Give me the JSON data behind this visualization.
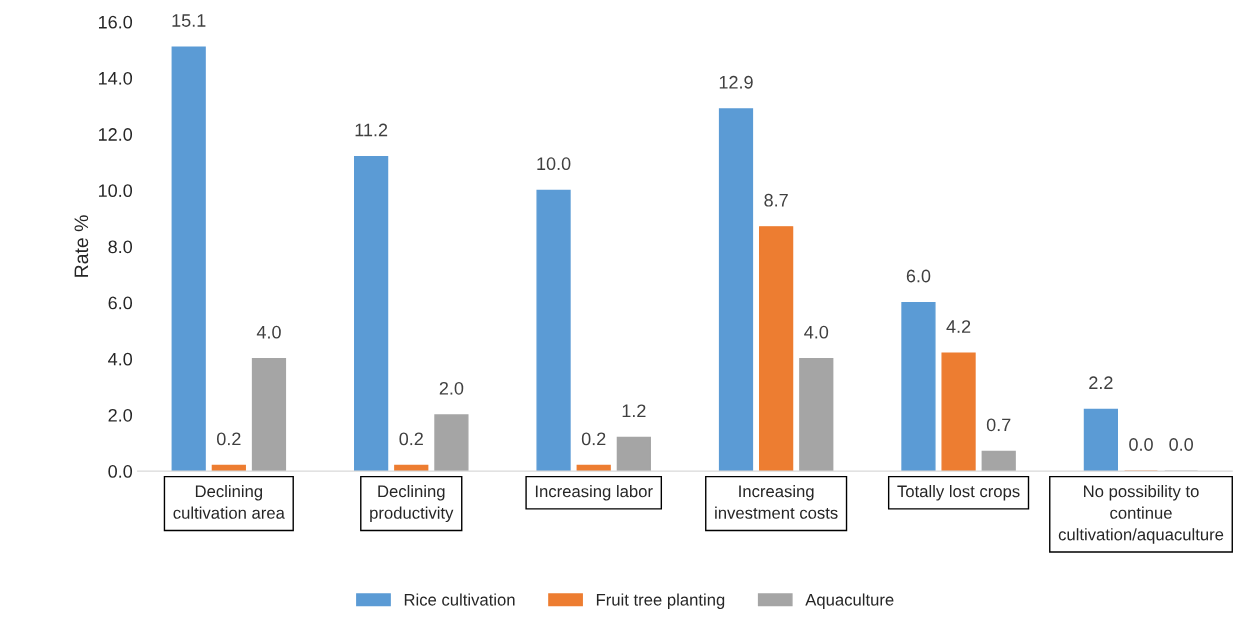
{
  "chart_data": {
    "type": "bar",
    "ylabel": "Rate %",
    "categories": [
      "Declining cultivation area",
      "Declining productivity",
      "Increasing labor",
      "Increasing investment costs",
      "Totally lost crops",
      "No possibility to continue cultivation/aquaculture"
    ],
    "series": [
      {
        "name": "Rice cultivation",
        "color": "#5b9bd5",
        "values": [
          15.1,
          11.2,
          10.0,
          12.9,
          6.0,
          2.2
        ],
        "value_labels": [
          "15.1",
          "11.2",
          "10.0",
          "12.9",
          "6.0",
          "2.2"
        ]
      },
      {
        "name": "Fruit tree planting",
        "color": "#ed7d31",
        "values": [
          0.2,
          0.2,
          0.2,
          8.7,
          4.2,
          0.0
        ],
        "value_labels": [
          "0.2",
          "0.2",
          "0.2",
          "8.7",
          "4.2",
          "0.0"
        ]
      },
      {
        "name": "Aquaculture",
        "color": "#a5a5a5",
        "values": [
          4.0,
          2.0,
          1.2,
          4.0,
          0.7,
          0.0
        ],
        "value_labels": [
          "4.0",
          "2.0",
          "1.2",
          "4.0",
          "0.7",
          "0.0"
        ]
      }
    ],
    "ylim": [
      0,
      16
    ],
    "yticks": [
      {
        "value": 0,
        "label": "0.0"
      },
      {
        "value": 2,
        "label": "2.0"
      },
      {
        "value": 4,
        "label": "4.0"
      },
      {
        "value": 6,
        "label": "6.0"
      },
      {
        "value": 8,
        "label": "8.0"
      },
      {
        "value": 10,
        "label": "10.0"
      },
      {
        "value": 12,
        "label": "12.0"
      },
      {
        "value": 14,
        "label": "14.0"
      },
      {
        "value": 16,
        "label": "16.0"
      }
    ],
    "grid": false,
    "legend": "bottom"
  }
}
